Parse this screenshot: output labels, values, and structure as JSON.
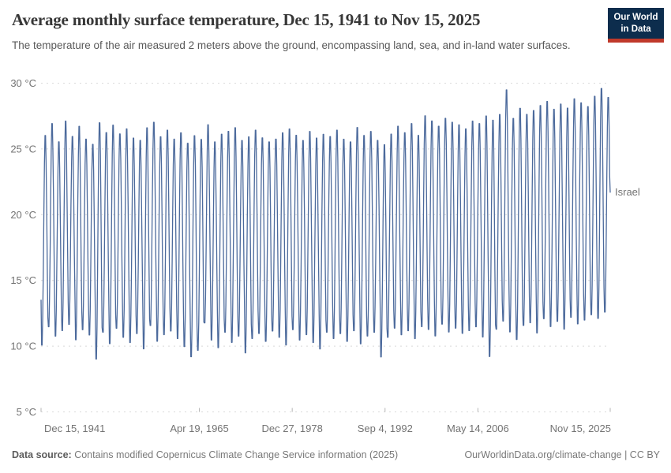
{
  "header": {
    "title": "Average monthly surface temperature, Dec 15, 1941 to Nov 15, 2025",
    "subtitle": "The temperature of the air measured 2 meters above the ground, encompassing land, sea, and in-land water surfaces.",
    "logo": {
      "line1": "Our World",
      "line2": "in Data",
      "bg_color": "#0d2d4d",
      "accent_color": "#c0392b"
    }
  },
  "footer": {
    "source_label": "Data source:",
    "source_text": " Contains modified Copernicus Climate Change Service information (2025)",
    "link_text": "OurWorldinData.org/climate-change | CC BY"
  },
  "chart_data": {
    "type": "line",
    "title": "Average monthly surface temperature, Dec 15, 1941 to Nov 15, 2025",
    "series_name": "Israel",
    "unit": "°C",
    "color": "#4C6A9C",
    "grid": true,
    "legend_position": "right-of-line-end",
    "ylim": [
      5,
      30.5
    ],
    "y_ticks": [
      {
        "label": "5 °C",
        "value": 5
      },
      {
        "label": "10 °C",
        "value": 10
      },
      {
        "label": "15 °C",
        "value": 15
      },
      {
        "label": "20 °C",
        "value": 20
      },
      {
        "label": "25 °C",
        "value": 25
      },
      {
        "label": "30 °C",
        "value": 30
      }
    ],
    "x_ticks": [
      {
        "label": "Dec 15, 1941",
        "t": 1941.9583
      },
      {
        "label": "Apr 19, 1965",
        "t": 1965.299
      },
      {
        "label": "Dec 27, 1978",
        "t": 1978.989
      },
      {
        "label": "Sep 4, 1992",
        "t": 1992.678
      },
      {
        "label": "May 14, 2006",
        "t": 2006.367
      },
      {
        "label": "Nov 15, 2025",
        "t": 2025.875
      }
    ],
    "x_start": {
      "label": "Dec 15, 1941",
      "t": 1941.9583,
      "value": 13.5
    },
    "x_end": {
      "label": "Nov 15, 2025",
      "t": 2025.875,
      "value": 21.7
    },
    "years": [
      1942,
      1943,
      1944,
      1945,
      1946,
      1947,
      1948,
      1949,
      1950,
      1951,
      1952,
      1953,
      1954,
      1955,
      1956,
      1957,
      1958,
      1959,
      1960,
      1961,
      1962,
      1963,
      1964,
      1965,
      1966,
      1967,
      1968,
      1969,
      1970,
      1971,
      1972,
      1973,
      1974,
      1975,
      1976,
      1977,
      1978,
      1979,
      1980,
      1981,
      1982,
      1983,
      1984,
      1985,
      1986,
      1987,
      1988,
      1989,
      1990,
      1991,
      1992,
      1993,
      1994,
      1995,
      1996,
      1997,
      1998,
      1999,
      2000,
      2001,
      2002,
      2003,
      2004,
      2005,
      2006,
      2007,
      2008,
      2009,
      2010,
      2011,
      2012,
      2013,
      2014,
      2015,
      2016,
      2017,
      2018,
      2019,
      2020,
      2021,
      2022,
      2023,
      2024,
      2025
    ],
    "summer_max": [
      26.3,
      27.2,
      25.8,
      27.4,
      26.2,
      27.0,
      26.0,
      25.6,
      27.3,
      26.5,
      27.1,
      26.4,
      26.8,
      26.1,
      25.9,
      26.9,
      27.3,
      26.2,
      26.7,
      26.0,
      26.5,
      25.7,
      26.3,
      26.0,
      27.1,
      25.8,
      26.4,
      26.6,
      26.9,
      25.9,
      26.2,
      26.7,
      26.1,
      25.8,
      26.0,
      26.5,
      26.8,
      26.3,
      25.9,
      26.6,
      26.1,
      26.4,
      26.2,
      26.7,
      26.0,
      25.8,
      26.9,
      26.3,
      26.6,
      25.9,
      25.6,
      26.4,
      27.0,
      26.5,
      27.2,
      26.3,
      27.8,
      27.4,
      27.0,
      27.6,
      27.3,
      27.1,
      26.8,
      27.4,
      27.2,
      27.8,
      27.5,
      27.9,
      29.8,
      27.6,
      28.4,
      27.9,
      28.2,
      28.6,
      28.9,
      28.3,
      28.7,
      28.4,
      29.1,
      28.8,
      28.5,
      29.3,
      29.9,
      29.2
    ],
    "winter_min": [
      9.8,
      11.2,
      10.5,
      10.9,
      11.4,
      10.2,
      11.0,
      10.6,
      8.7,
      10.8,
      9.9,
      11.1,
      10.4,
      10.0,
      10.7,
      9.5,
      11.3,
      10.1,
      10.6,
      10.9,
      10.3,
      9.7,
      8.9,
      9.4,
      11.5,
      10.2,
      9.6,
      10.8,
      10.0,
      10.5,
      9.2,
      10.3,
      10.7,
      10.1,
      10.9,
      10.4,
      9.8,
      11.0,
      10.2,
      10.6,
      10.0,
      9.5,
      10.8,
      10.3,
      10.7,
      10.1,
      10.9,
      9.9,
      10.5,
      10.8,
      8.9,
      10.4,
      11.1,
      10.6,
      10.9,
      10.3,
      11.2,
      11.0,
      10.5,
      11.4,
      10.8,
      11.1,
      10.7,
      10.9,
      11.2,
      10.4,
      8.9,
      11.0,
      11.6,
      10.8,
      10.2,
      11.3,
      11.5,
      10.7,
      11.8,
      11.2,
      11.6,
      11.0,
      11.9,
      11.4,
      11.7,
      12.1,
      11.8,
      12.3
    ]
  }
}
